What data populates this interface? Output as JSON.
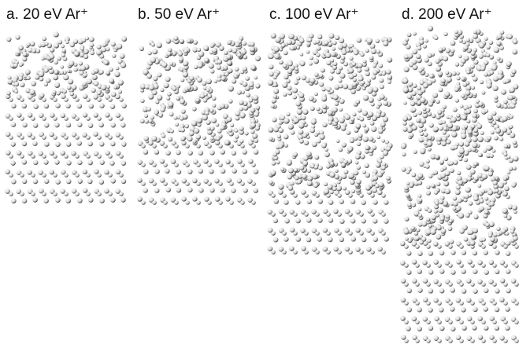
{
  "panels": [
    {
      "label": "a. 20 eV Ar⁺"
    },
    {
      "label": "b. 50 eV Ar⁺"
    },
    {
      "label": "c. 100 eV Ar⁺"
    },
    {
      "label": "d. 200 eV Ar⁺"
    }
  ]
}
